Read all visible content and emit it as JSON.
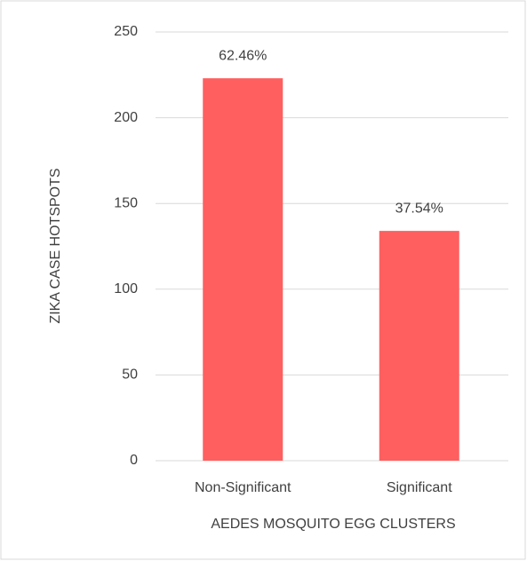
{
  "chart_data": {
    "type": "bar",
    "categories": [
      "Non-Significant",
      "Significant"
    ],
    "values": [
      223,
      134
    ],
    "annotations": [
      "62.46%",
      "37.54%"
    ],
    "color": "#ff5f5f",
    "xlabel": "AEDES MOSQUITO EGG CLUSTERS",
    "ylabel": "ZIKA CASE HOTSPOTS",
    "ylim": [
      0,
      250
    ],
    "yticks": [
      0,
      50,
      100,
      150,
      200,
      250
    ],
    "grid": true
  }
}
